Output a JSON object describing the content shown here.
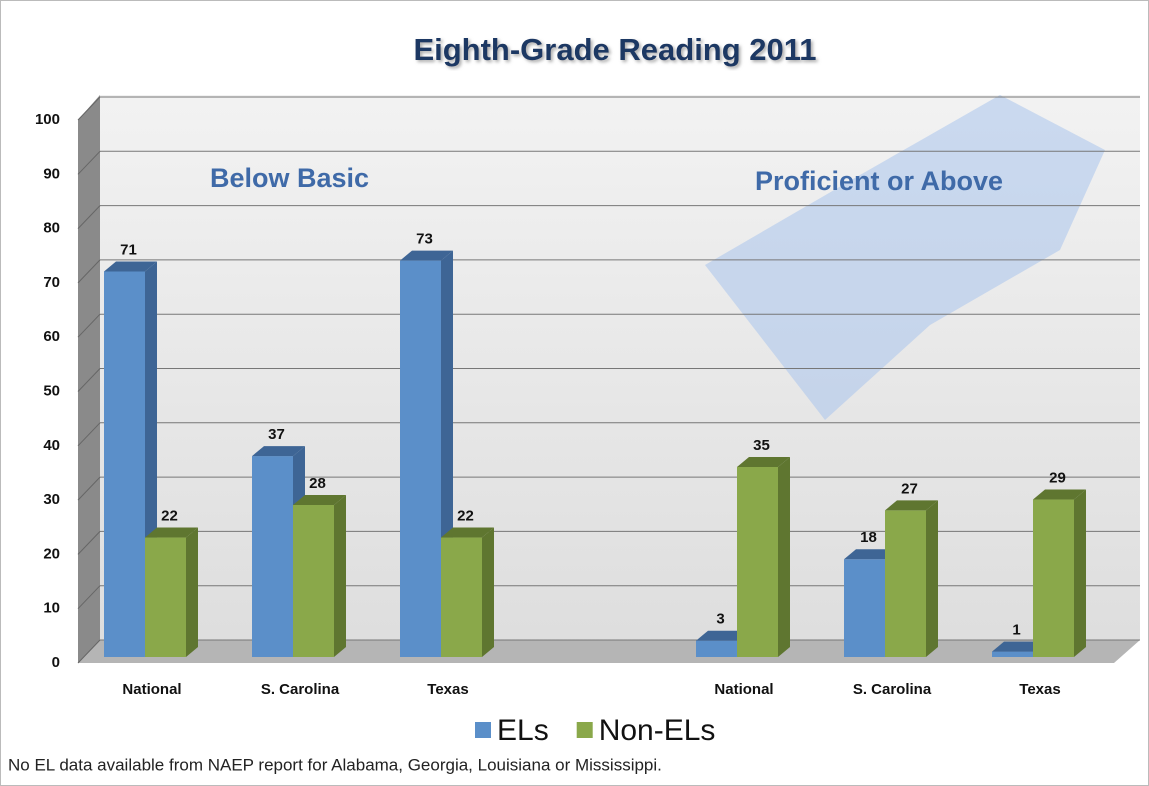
{
  "chart_data": {
    "type": "bar3d",
    "title": "Eighth-Grade Reading 2011",
    "annotations": [
      "Below Basic",
      "Proficient or Above"
    ],
    "footnote": "No EL data available from NAEP report for Alabama, Georgia, Louisiana or Mississippi.",
    "categories": [
      "National",
      "S. Carolina",
      "Texas",
      null,
      "National",
      "S. Carolina",
      "Texas"
    ],
    "series": [
      {
        "name": "ELs",
        "color": "#5b8fc9",
        "side": "#3e6595",
        "values": [
          71,
          37,
          73,
          null,
          3,
          18,
          1
        ]
      },
      {
        "name": "Non-ELs",
        "color": "#8aa84a",
        "side": "#5f7630",
        "values": [
          22,
          28,
          22,
          null,
          35,
          27,
          29
        ]
      }
    ],
    "ylim": [
      0,
      100
    ],
    "yticks": [
      0,
      10,
      20,
      30,
      40,
      50,
      60,
      70,
      80,
      90,
      100
    ],
    "grid": true
  }
}
